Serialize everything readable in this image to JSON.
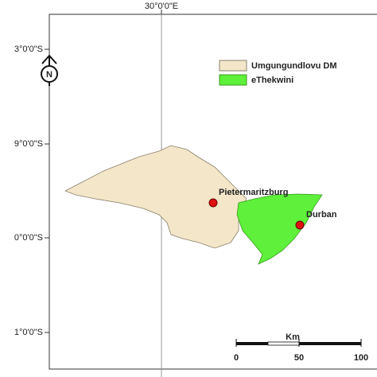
{
  "map": {
    "top_label": "30°0'0\"E",
    "left_labels": [
      "3°0'0\"S",
      "9°0'0\"S",
      "0°0'0\"S",
      "1°0'0\"S"
    ],
    "north": "N",
    "legend": [
      "Umgungundlovu DM",
      "eThekwini"
    ],
    "places": [
      "Pietermaritzburg",
      "Durban"
    ],
    "scale": {
      "unit": "Km",
      "labels": [
        0,
        50,
        100
      ]
    }
  }
}
